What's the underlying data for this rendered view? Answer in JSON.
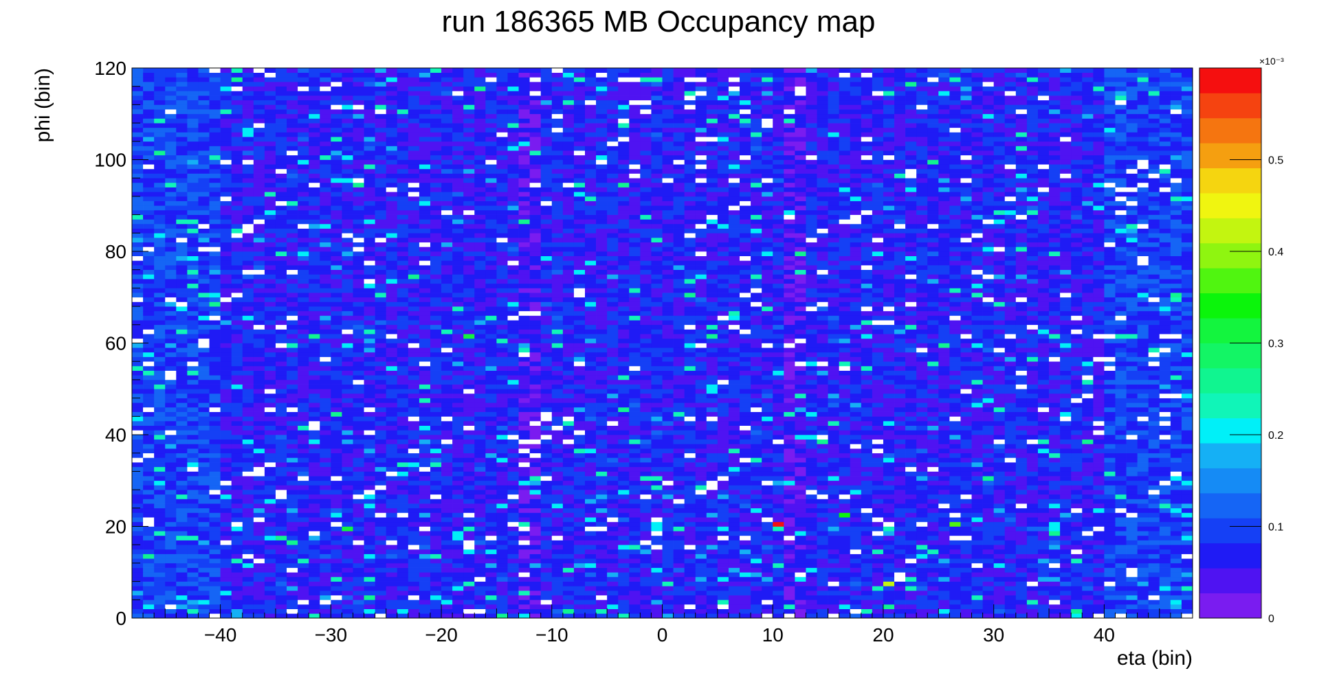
{
  "chart_data": {
    "type": "heatmap",
    "title": "run 186365 MB  Occupancy map",
    "xlabel": "eta (bin)",
    "ylabel": "phi (bin)",
    "xlim": [
      -48,
      48
    ],
    "ylim": [
      0,
      120
    ],
    "x_ticks": [
      -40,
      -30,
      -20,
      -10,
      0,
      10,
      20,
      30,
      40
    ],
    "x_tick_labels": [
      "−40",
      "−30",
      "−20",
      "−10",
      "0",
      "10",
      "20",
      "30",
      "40"
    ],
    "y_ticks": [
      0,
      20,
      40,
      60,
      80,
      100,
      120
    ],
    "y_tick_labels": [
      "0",
      "20",
      "40",
      "60",
      "80",
      "100",
      "120"
    ],
    "bins_x": 96,
    "bins_y": 120,
    "z_scale_label": "×10⁻³",
    "z_range": [
      0,
      0.6
    ],
    "z_ticks": [
      0,
      0.1,
      0.2,
      0.3,
      0.4,
      0.5
    ],
    "z_tick_labels": [
      "0",
      "0.1",
      "0.2",
      "0.3",
      "0.4",
      "0.5"
    ],
    "palette": [
      "#7a1cf0",
      "#4f13f2",
      "#1f1bf5",
      "#1540f5",
      "#1565f5",
      "#158bf5",
      "#15b0f5",
      "#00f0f8",
      "#10f5b8",
      "#10f590",
      "#13f565",
      "#13f53e",
      "#0bf50b",
      "#50f510",
      "#8ff510",
      "#c3f510",
      "#f0f510",
      "#f5d510",
      "#f59f10",
      "#f57510",
      "#f54310",
      "#f50f0f"
    ],
    "dominant_value": 0.07,
    "empty_bin_color": "#ffffff",
    "notable_bins": [
      {
        "x": 10.5,
        "y": 20.5,
        "value": 0.59
      },
      {
        "x": 26.5,
        "y": 20.5,
        "value": 0.37
      },
      {
        "x": 16.5,
        "y": 22.5,
        "value": 0.33
      },
      {
        "x": 20.5,
        "y": 7.5,
        "value": 0.43
      },
      {
        "x": -28.5,
        "y": 19.5,
        "value": 0.3
      },
      {
        "x": -17.5,
        "y": 61.5,
        "value": 0.32
      }
    ]
  }
}
